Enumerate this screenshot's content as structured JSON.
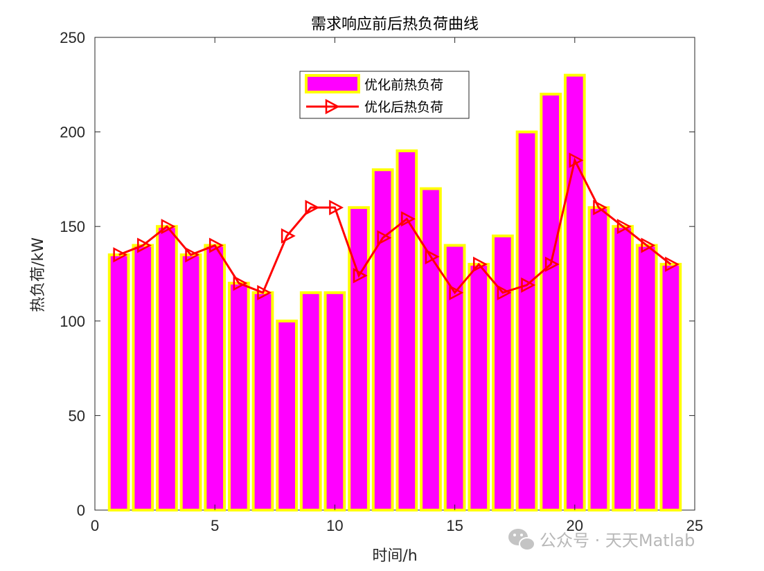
{
  "chart_data": {
    "type": "bar",
    "title": "需求响应前后热负荷曲线",
    "xlabel": "时间/h",
    "ylabel": "热负荷/kW",
    "xlim": [
      0,
      25
    ],
    "ylim": [
      0,
      250
    ],
    "xticks": [
      0,
      5,
      10,
      15,
      20,
      25
    ],
    "yticks": [
      0,
      50,
      100,
      150,
      200,
      250
    ],
    "x": [
      1,
      2,
      3,
      4,
      5,
      6,
      7,
      8,
      9,
      10,
      11,
      12,
      13,
      14,
      15,
      16,
      17,
      18,
      19,
      20,
      21,
      22,
      23,
      24
    ],
    "legend_position": "top-center",
    "series": [
      {
        "name": "优化前热负荷",
        "kind": "bar",
        "color": "#ff00ff",
        "edge_color": "#ffff00",
        "values": [
          135,
          140,
          150,
          135,
          140,
          120,
          115,
          100,
          115,
          115,
          160,
          180,
          190,
          170,
          140,
          130,
          145,
          200,
          220,
          230,
          160,
          150,
          140,
          130
        ]
      },
      {
        "name": "优化后热负荷",
        "kind": "line",
        "color": "#ff0000",
        "marker": "triangle-right",
        "values": [
          135,
          140,
          150,
          135,
          140,
          120,
          115,
          145,
          160,
          160,
          124,
          144,
          154,
          134,
          115,
          130,
          115,
          119,
          130,
          185,
          160,
          150,
          140,
          130
        ]
      }
    ]
  },
  "watermark": {
    "icon": "wechat-icon",
    "text": "公众号 · 天天Matlab"
  }
}
